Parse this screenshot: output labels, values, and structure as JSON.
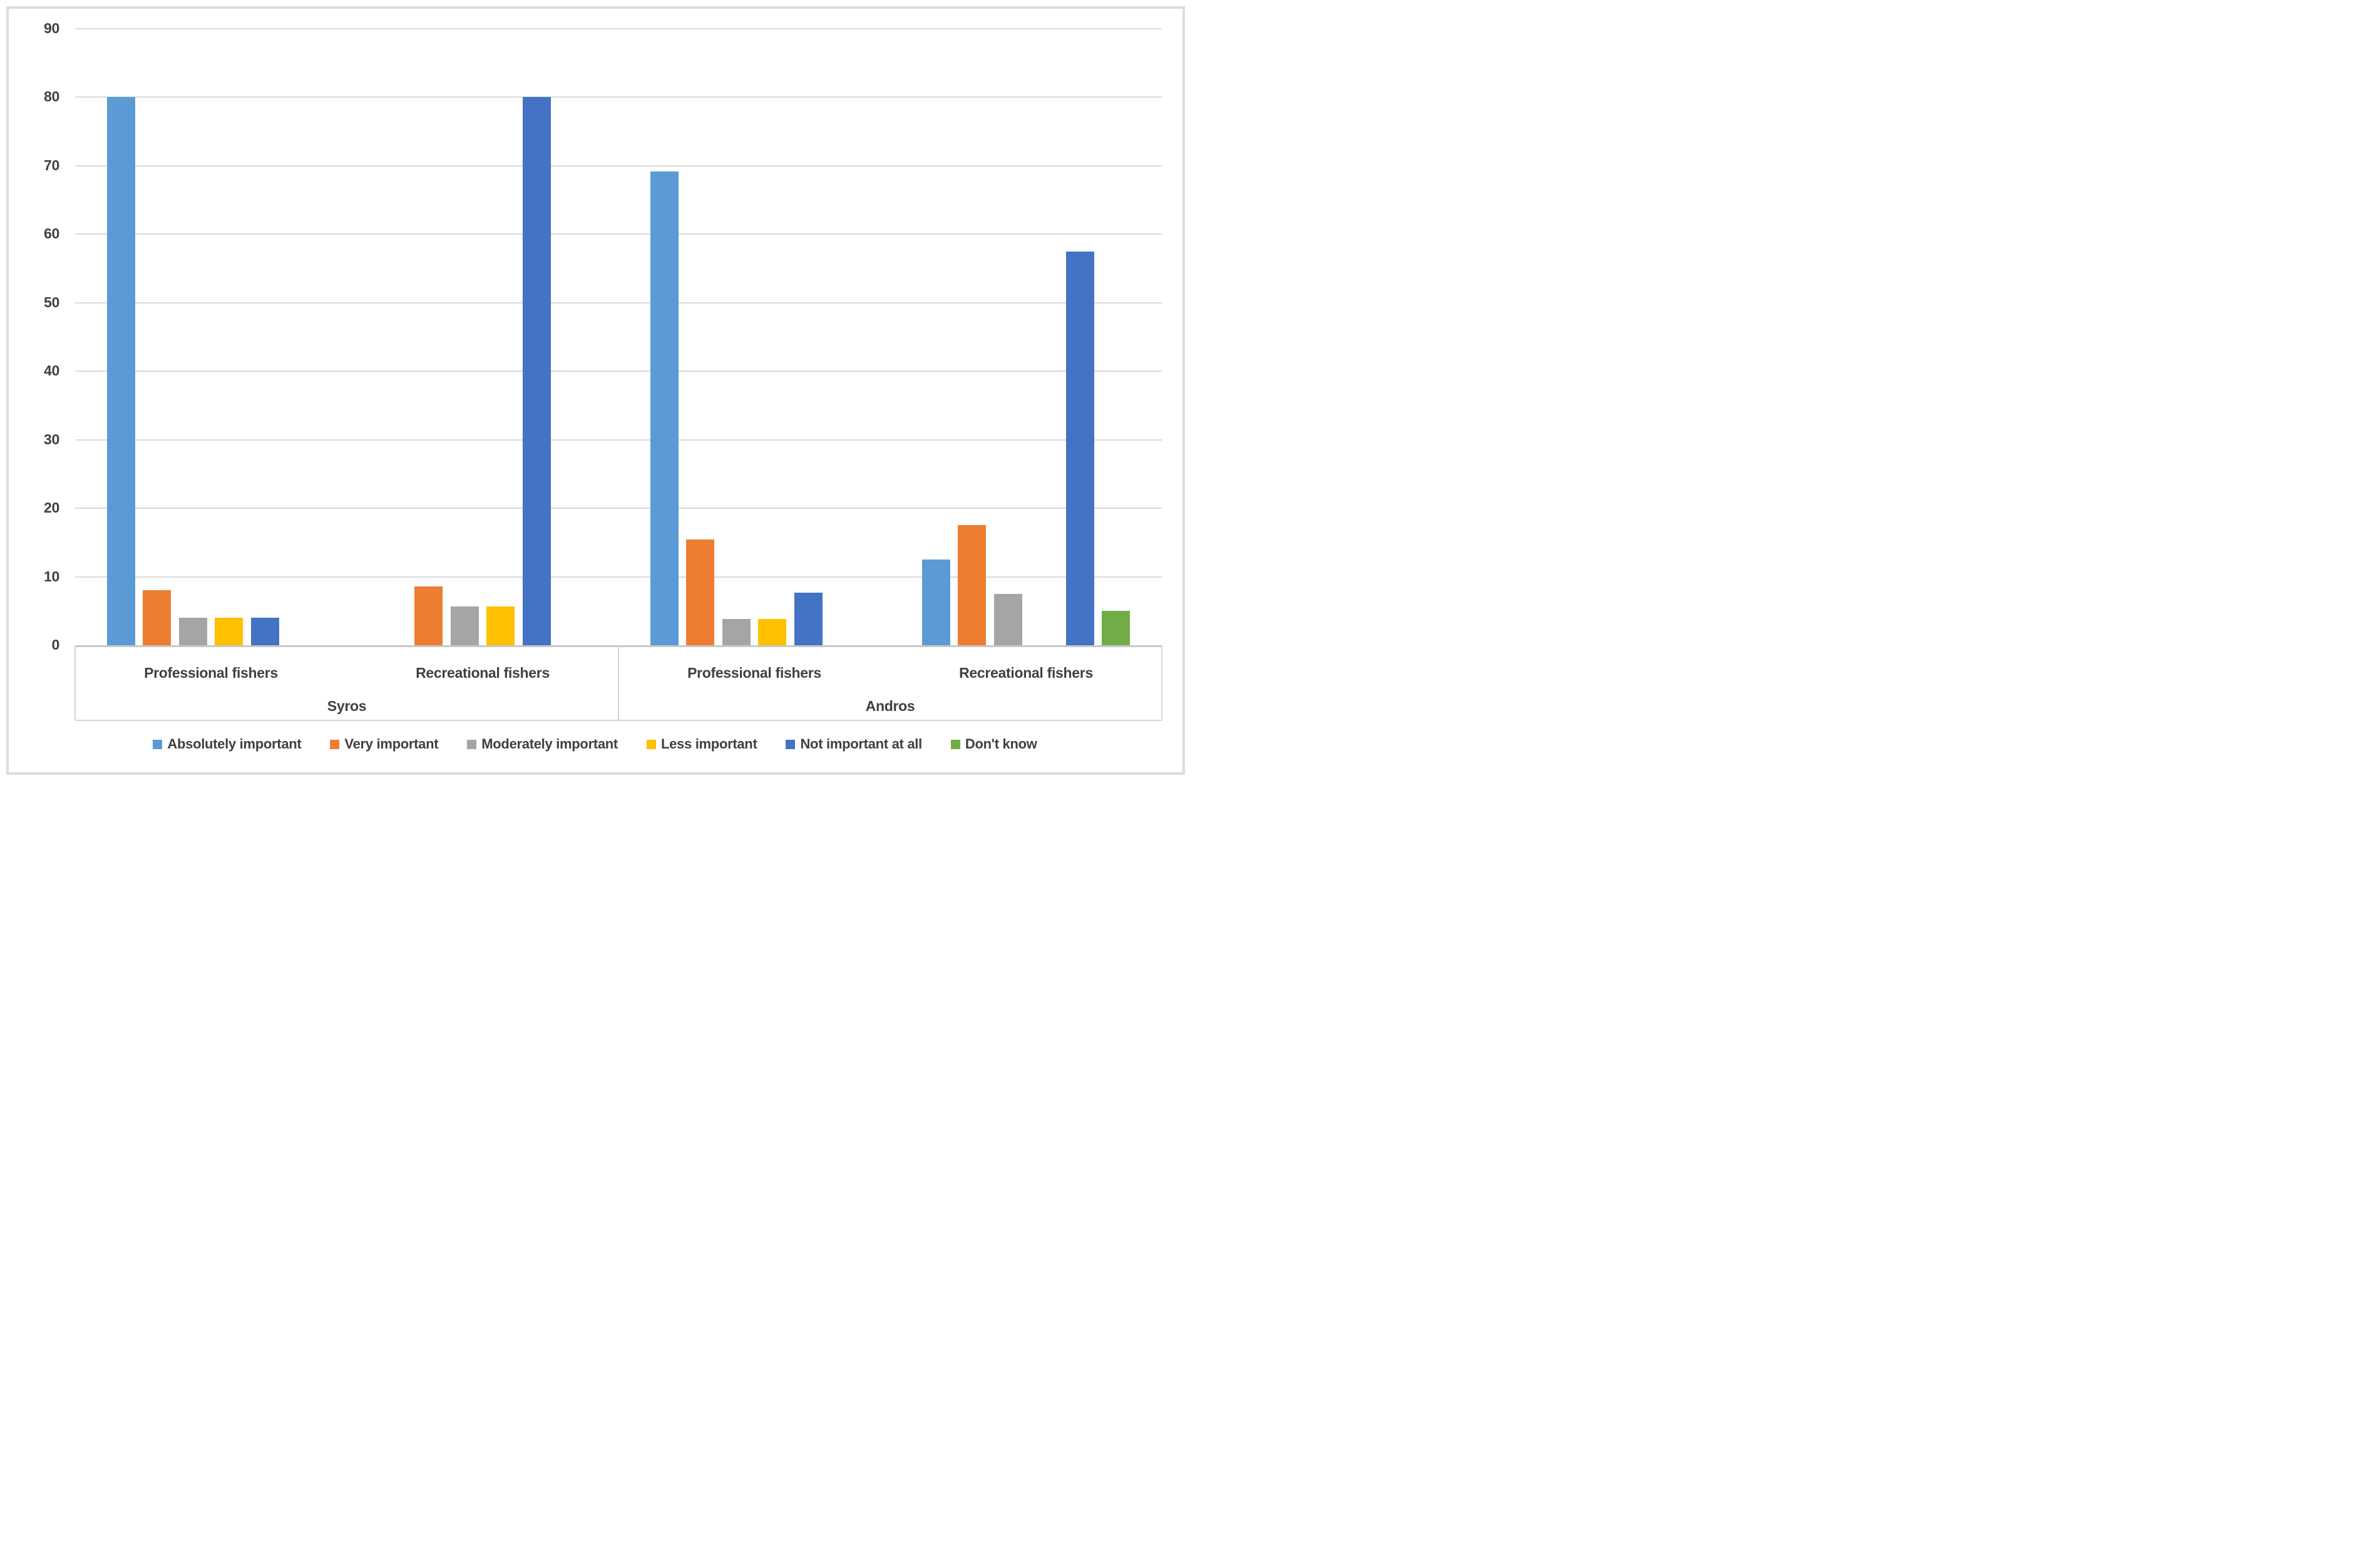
{
  "figure": {
    "background_color": "#ffffff",
    "border_color": "#dcdcdc"
  },
  "axis_style": {
    "text_color": "#404040",
    "gridline_color": "#dadada",
    "axis_line_color": "#c8c8c8"
  },
  "chart_data": {
    "type": "bar",
    "title": "",
    "xlabel": "",
    "ylabel": "",
    "ylim": [
      0,
      90
    ],
    "yticks": [
      0,
      10,
      20,
      30,
      40,
      50,
      60,
      70,
      80,
      90
    ],
    "grid": true,
    "legend_position": "bottom",
    "group_labels": [
      "Professional fishers",
      "Recreational fishers",
      "Professional fishers",
      "Recreational fishers"
    ],
    "island_labels": [
      "Syros",
      "Andros"
    ],
    "series": [
      {
        "name": "Absolutely important",
        "color": "#5B9BD5",
        "values": [
          80,
          0,
          69.2,
          12.5
        ]
      },
      {
        "name": "Very important",
        "color": "#ED7D31",
        "values": [
          8,
          8.6,
          15.4,
          17.5
        ]
      },
      {
        "name": "Moderately important",
        "color": "#A5A5A5",
        "values": [
          4,
          5.7,
          3.8,
          7.5
        ]
      },
      {
        "name": "Less important",
        "color": "#FFC000",
        "values": [
          4,
          5.7,
          3.8,
          0
        ]
      },
      {
        "name": "Not important at all",
        "color": "#4472C4",
        "values": [
          4,
          80,
          7.7,
          57.5
        ]
      },
      {
        "name": "Don't know",
        "color": "#70AD47",
        "values": [
          0,
          0,
          0,
          5
        ]
      }
    ]
  }
}
